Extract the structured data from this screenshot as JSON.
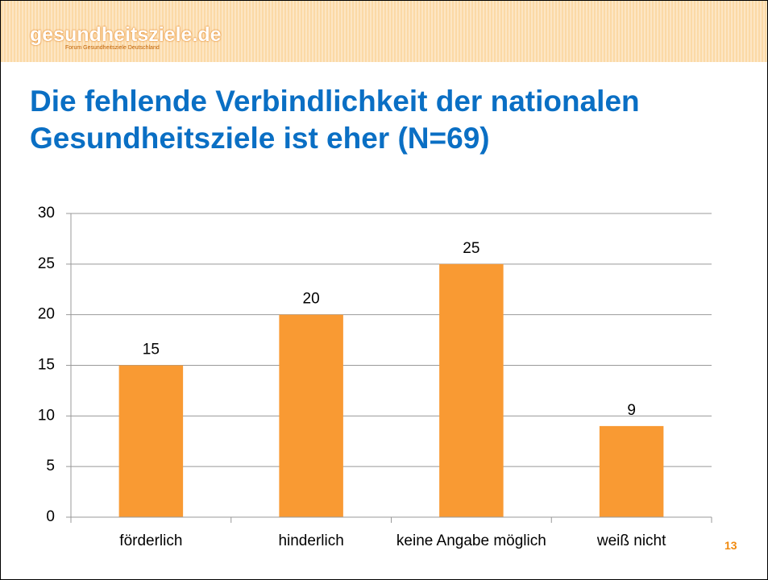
{
  "header": {
    "logo": "gesundheitsziele.de",
    "logo_subtitle": "Forum Gesundheitsziele Deutschland"
  },
  "chart_data": {
    "type": "bar",
    "title": "Die fehlende Verbindlichkeit der nationalen Gesundheitsziele ist eher (N=69)",
    "categories": [
      "förderlich",
      "hinderlich",
      "keine Angabe möglich",
      "weiß nicht"
    ],
    "values": [
      15,
      20,
      25,
      9
    ],
    "color": "#f99a33",
    "ylim": [
      0,
      30
    ],
    "yticks": [
      0,
      5,
      10,
      15,
      20,
      25,
      30
    ],
    "grid": true,
    "value_labels_shown": true
  },
  "page_number": "13"
}
